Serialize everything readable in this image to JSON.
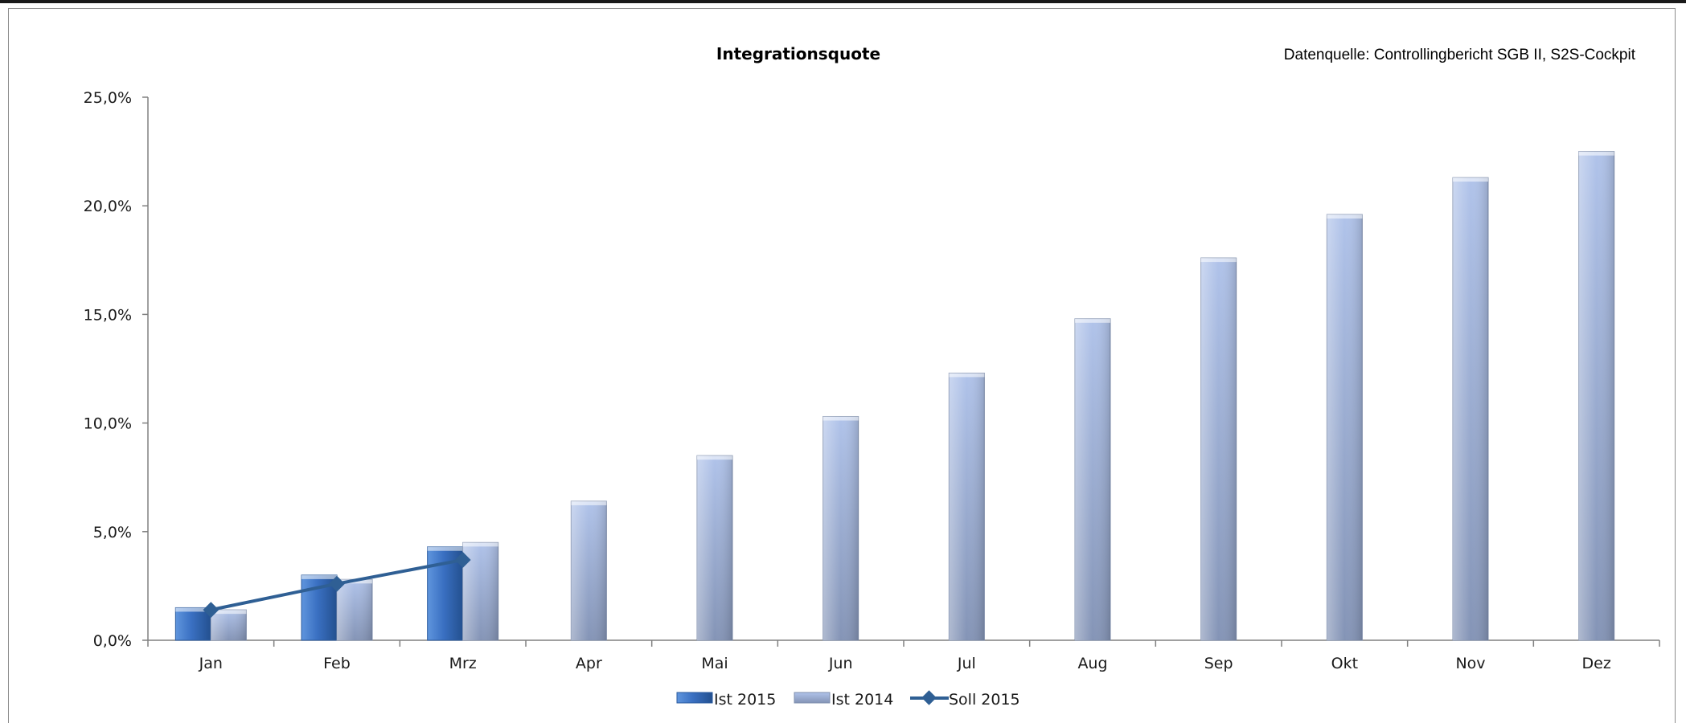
{
  "chart_data": {
    "type": "bar",
    "title": "Integrationsquote",
    "source_note": "Datenquelle: Controllingbericht SGB II, S2S-Cockpit",
    "categories": [
      "Jan",
      "Feb",
      "Mrz",
      "Apr",
      "Mai",
      "Jun",
      "Jul",
      "Aug",
      "Sep",
      "Okt",
      "Nov",
      "Dez"
    ],
    "series": [
      {
        "name": "Ist 2015",
        "kind": "bar",
        "color": "#3d73c4",
        "values": [
          1.5,
          3.0,
          4.3,
          null,
          null,
          null,
          null,
          null,
          null,
          null,
          null,
          null
        ]
      },
      {
        "name": "Ist 2014",
        "kind": "bar",
        "color": "#a3b8e0",
        "values": [
          1.4,
          2.8,
          4.5,
          6.4,
          8.5,
          10.3,
          12.3,
          14.8,
          17.6,
          19.6,
          21.3,
          22.5
        ]
      },
      {
        "name": "Soll 2015",
        "kind": "line",
        "color": "#2f5f94",
        "values": [
          1.4,
          2.6,
          3.7,
          null,
          null,
          null,
          null,
          null,
          null,
          null,
          null,
          null
        ]
      }
    ],
    "y_ticks": [
      "0,0%",
      "5,0%",
      "10,0%",
      "15,0%",
      "20,0%",
      "25,0%"
    ],
    "y_tick_values": [
      0,
      5,
      10,
      15,
      20,
      25
    ],
    "ylim": [
      0,
      25
    ],
    "legend_position": "bottom",
    "grid": false
  }
}
